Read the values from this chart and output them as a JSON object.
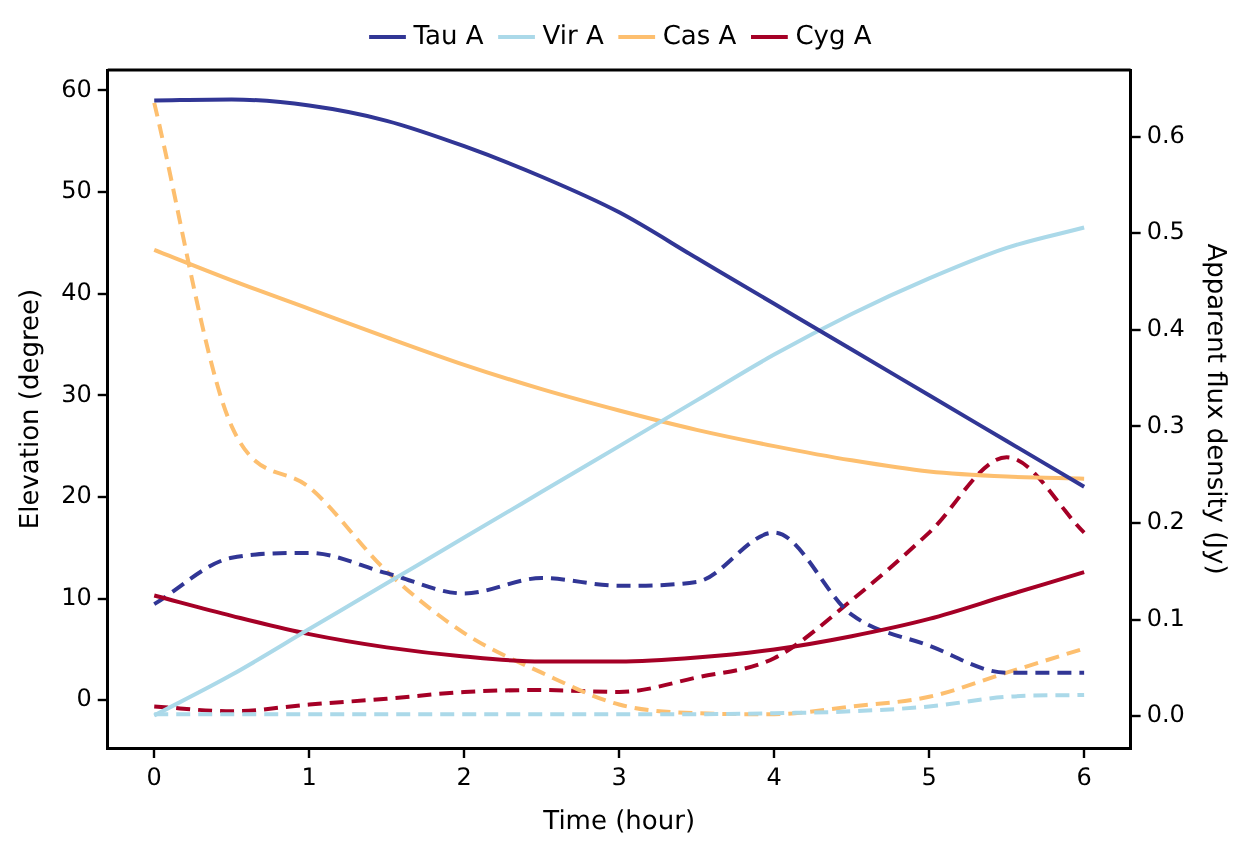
{
  "chart_data": {
    "type": "line",
    "xlabel": "Time (hour)",
    "ylabel": "Elevation (degree)",
    "y2label": "Apparent flux density (Jy)",
    "x": [
      0,
      0.5,
      1,
      1.5,
      2,
      2.5,
      3,
      3.5,
      4,
      4.5,
      5,
      5.5,
      6
    ],
    "xlim": [
      -0.3,
      6.3
    ],
    "xticks": [
      0,
      1,
      2,
      3,
      4,
      5,
      6
    ],
    "ylim": [
      -4.7,
      62
    ],
    "yticks": [
      0,
      10,
      20,
      30,
      40,
      50,
      60
    ],
    "y2lim": [
      -0.033,
      0.669
    ],
    "y2ticks": [
      {
        "value": 0,
        "label": "0.0"
      },
      0.1,
      0.2,
      0.3,
      0.4,
      0.5,
      0.6
    ],
    "legend": "top",
    "grid": false,
    "marker": "none",
    "series": [
      {
        "name": "Tau A",
        "color": "#313695",
        "line_style": "solid",
        "values": [
          59,
          59.1,
          58.5,
          57,
          54.5,
          51.5,
          48,
          43.5,
          39,
          34.5,
          30,
          25.5,
          21
        ]
      },
      {
        "name": "Vir A",
        "color": "#abd9e9",
        "line_style": "solid",
        "values": [
          -1.5,
          2.5,
          7,
          11.5,
          16,
          20.5,
          25,
          29.5,
          34,
          38,
          41.5,
          44.5,
          46.5
        ]
      },
      {
        "name": "Cas A",
        "color": "#fdbf6f",
        "line_style": "solid",
        "values": [
          44.3,
          41.3,
          38.5,
          35.7,
          33,
          30.6,
          28.5,
          26.6,
          25,
          23.6,
          22.5,
          22,
          21.8
        ]
      },
      {
        "name": "Cyg A",
        "color": "#a50026",
        "line_style": "solid",
        "values": [
          10.3,
          8.3,
          6.5,
          5.2,
          4.3,
          3.8,
          3.8,
          4.2,
          5,
          6.3,
          8,
          10.3,
          12.6
        ]
      },
      {
        "color": "#313695",
        "line_style": "dashed",
        "axis": "y2",
        "values": [
          0.116,
          0.164,
          0.169,
          0.148,
          0.127,
          0.143,
          0.135,
          0.139,
          0.19,
          0.105,
          0.073,
          0.045,
          0.045
        ]
      },
      {
        "color": "#abd9e9",
        "line_style": "dashed",
        "axis": "y2",
        "values": [
          0.002,
          0.002,
          0.002,
          0.002,
          0.002,
          0.002,
          0.002,
          0.002,
          0.003,
          0.005,
          0.01,
          0.02,
          0.022
        ]
      },
      {
        "color": "#fdbf6f",
        "line_style": "dashed",
        "axis": "y2",
        "values": [
          0.635,
          0.3,
          0.237,
          0.15,
          0.086,
          0.045,
          0.012,
          0.003,
          0.002,
          0.01,
          0.02,
          0.045,
          0.07
        ]
      },
      {
        "color": "#a50026",
        "line_style": "dashed",
        "axis": "y2",
        "values": [
          0.01,
          0.005,
          0.012,
          0.018,
          0.025,
          0.027,
          0.025,
          0.04,
          0.06,
          0.12,
          0.19,
          0.268,
          0.19
        ]
      }
    ]
  }
}
